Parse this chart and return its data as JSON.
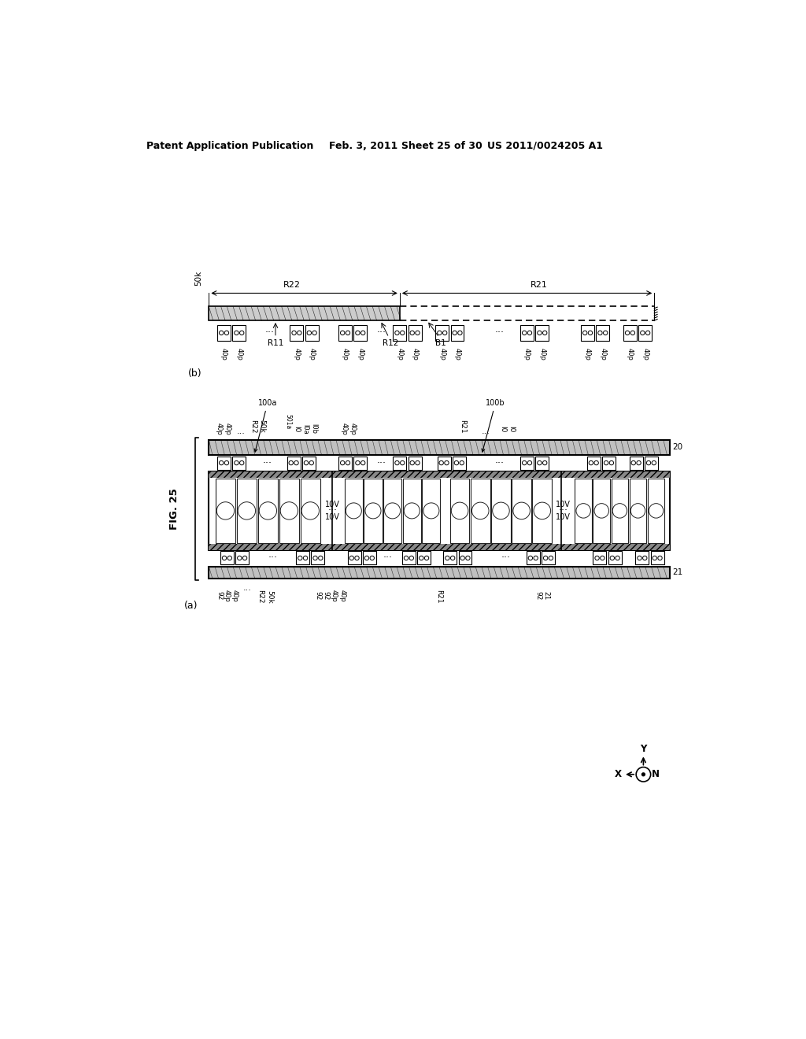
{
  "bg_color": "#ffffff",
  "header_text": "Patent Application Publication",
  "header_date": "Feb. 3, 2011",
  "header_sheet": "Sheet 25 of 30",
  "header_patent": "US 2011/0024205 A1",
  "fig_label": "FIG. 25",
  "fig_a_label": "(a)",
  "fig_b_label": "(b)"
}
